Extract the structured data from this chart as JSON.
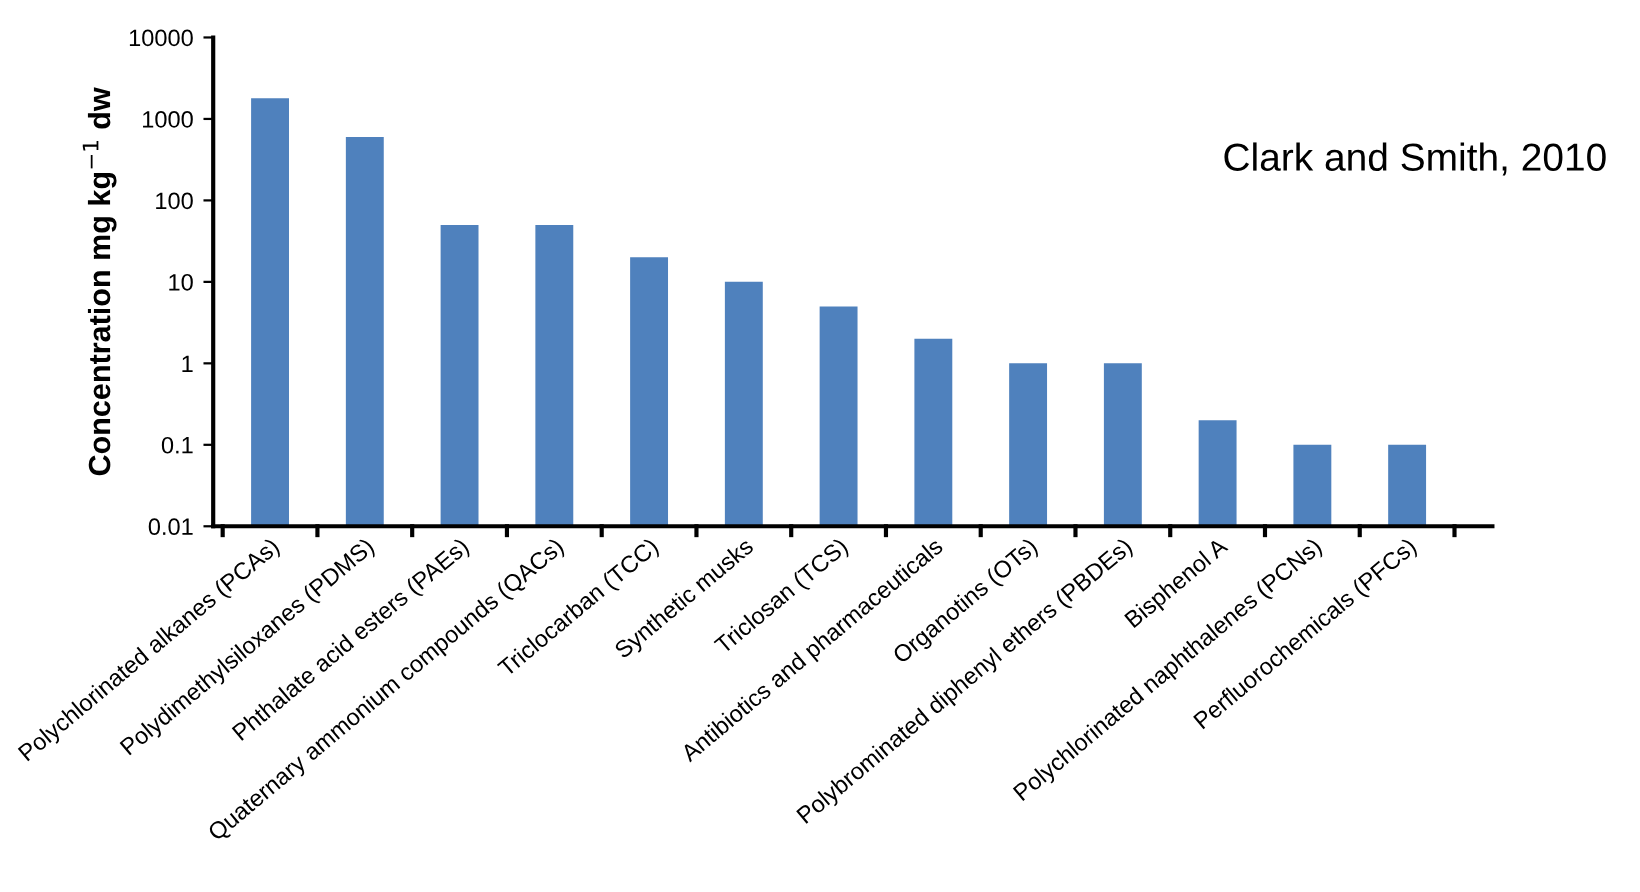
{
  "chart_data": {
    "type": "bar",
    "categories": [
      "Polychlorinated alkanes (PCAs)",
      "Polydimethylsiloxanes (PDMS)",
      "Phthalate acid esters (PAEs)",
      "Quaternary ammonium compounds (QACs)",
      "Triclocarban (TCC)",
      "Synthetic musks",
      "Triclosan (TCS)",
      "Antibiotics and pharmaceuticals",
      "Organotins (OTs)",
      "Polybrominated diphenyl ethers (PBDEs)",
      "Bisphenol A",
      "Polychlorinated naphthalenes (PCNs)",
      "Perfluorochemicals (PFCs)"
    ],
    "values": [
      1800,
      600,
      50,
      50,
      20,
      10,
      5,
      2,
      1,
      1,
      0.2,
      0.1,
      0.1
    ],
    "color": "#4f81bd",
    "ylabel": "Concentration mg kg$^{−1}$ dw",
    "log": true,
    "ylim": [
      0.01,
      10000
    ],
    "yticks": [
      {
        "value": 0.01,
        "label": "0.01"
      },
      {
        "value": 0.1,
        "label": "0.1"
      },
      1,
      10,
      100,
      1000,
      10000
    ],
    "grid": false,
    "annotations": [
      "Clark and Smith, 2010"
    ]
  }
}
